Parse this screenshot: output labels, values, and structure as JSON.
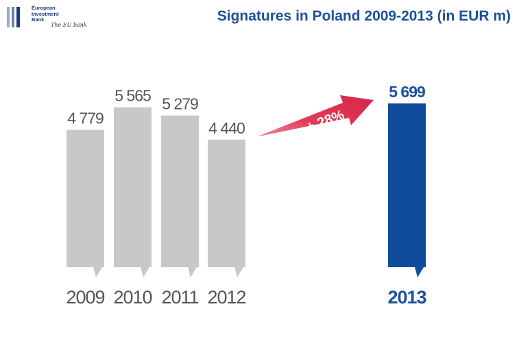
{
  "header": {
    "logo_line1": "European",
    "logo_line2": "Investment",
    "logo_line3": "Bank",
    "logo_tagline": "The EU bank",
    "title": "Signatures in Poland 2009-2013 (in EUR m)"
  },
  "colors": {
    "grey_bar": "#c8c8c8",
    "highlight_bar": "#0f4d9a",
    "grey_text": "#555555",
    "highlight_text": "#1e4f9a",
    "arrow": "#e33a57",
    "title": "#1e4f9a"
  },
  "chart_data": {
    "type": "bar",
    "title": "Signatures in Poland 2009-2013 (in EUR m)",
    "categories": [
      "2009",
      "2010",
      "2011",
      "2012",
      "2013"
    ],
    "values": [
      4779,
      5565,
      5279,
      4440,
      5699
    ],
    "value_labels": [
      "4 779",
      "5 565",
      "5 279",
      "4 440",
      "5 699"
    ],
    "highlight_index": 4,
    "ylim": [
      0,
      5699
    ],
    "grid": false,
    "annotation": {
      "text": "+ 28%"
    }
  }
}
